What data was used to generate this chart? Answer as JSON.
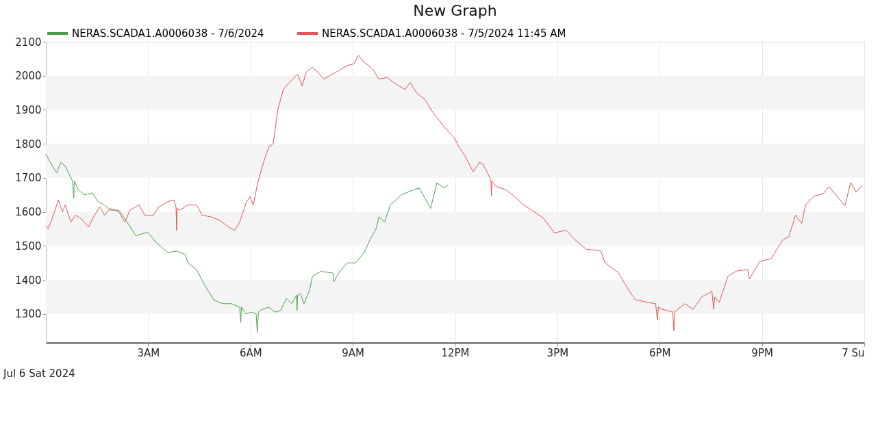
{
  "chart_data": {
    "type": "line",
    "title": "New Graph",
    "series": [
      {
        "name": "NERAS.SCADA1.A0006038 - 7/6/2024",
        "color": "#4c9e4c",
        "x": [
          "2024-07-06T00:00",
          "2024-07-06T00:06",
          "2024-07-06T00:19",
          "2024-07-06T00:26",
          "2024-07-06T00:34",
          "2024-07-06T00:47",
          "2024-07-06T00:49",
          "2024-07-06T00:50",
          "2024-07-06T00:57",
          "2024-07-06T01:07",
          "2024-07-06T01:22",
          "2024-07-06T01:32",
          "2024-07-06T01:43",
          "2024-07-06T01:53",
          "2024-07-06T02:08",
          "2024-07-06T02:23",
          "2024-07-06T02:38",
          "2024-07-06T02:59",
          "2024-07-06T03:14",
          "2024-07-06T03:35",
          "2024-07-06T03:50",
          "2024-07-06T04:05",
          "2024-07-06T04:10",
          "2024-07-06T04:25",
          "2024-07-06T04:41",
          "2024-07-06T04:56",
          "2024-07-06T05:11",
          "2024-07-06T05:26",
          "2024-07-06T05:41",
          "2024-07-06T05:43",
          "2024-07-06T05:44",
          "2024-07-06T05:52",
          "2024-07-06T06:02",
          "2024-07-06T06:10",
          "2024-07-06T06:12",
          "2024-07-06T06:14",
          "2024-07-06T06:17",
          "2024-07-06T06:32",
          "2024-07-06T06:43",
          "2024-07-06T06:53",
          "2024-07-06T07:03",
          "2024-07-06T07:13",
          "2024-07-06T07:21",
          "2024-07-06T07:22",
          "2024-07-06T07:23",
          "2024-07-06T07:28",
          "2024-07-06T07:34",
          "2024-07-06T07:44",
          "2024-07-06T07:49",
          "2024-07-06T08:04",
          "2024-07-06T08:25",
          "2024-07-06T08:27",
          "2024-07-06T08:35",
          "2024-07-06T08:50",
          "2024-07-06T09:05",
          "2024-07-06T09:20",
          "2024-07-06T09:31",
          "2024-07-06T09:41",
          "2024-07-06T09:46",
          "2024-07-06T09:56",
          "2024-07-06T10:06",
          "2024-07-06T10:26",
          "2024-07-06T10:47",
          "2024-07-06T10:57",
          "2024-07-06T11:07",
          "2024-07-06T11:17",
          "2024-07-06T11:28",
          "2024-07-06T11:41",
          "2024-07-06T11:48"
        ],
        "values": [
          1770,
          1750,
          1715,
          1745,
          1735,
          1690,
          1640,
          1690,
          1665,
          1650,
          1655,
          1630,
          1620,
          1605,
          1605,
          1570,
          1530,
          1540,
          1510,
          1480,
          1485,
          1475,
          1450,
          1430,
          1380,
          1340,
          1330,
          1330,
          1320,
          1275,
          1320,
          1300,
          1305,
          1300,
          1245,
          1305,
          1310,
          1320,
          1305,
          1310,
          1345,
          1330,
          1355,
          1310,
          1355,
          1360,
          1330,
          1370,
          1410,
          1425,
          1420,
          1395,
          1420,
          1450,
          1450,
          1480,
          1520,
          1550,
          1585,
          1570,
          1620,
          1650,
          1665,
          1670,
          1640,
          1610,
          1685,
          1670,
          1680
        ]
      },
      {
        "name": "NERAS.SCADA1.A0006038 - 7/5/2024  11:45 AM",
        "color": "#e05555",
        "x": [
          "2024-07-06T00:00",
          "2024-07-06T00:04",
          "2024-07-06T00:11",
          "2024-07-06T00:22",
          "2024-07-06T00:29",
          "2024-07-06T00:34",
          "2024-07-06T00:44",
          "2024-07-06T00:52",
          "2024-07-06T01:02",
          "2024-07-06T01:15",
          "2024-07-06T01:22",
          "2024-07-06T01:35",
          "2024-07-06T01:43",
          "2024-07-06T01:53",
          "2024-07-06T02:08",
          "2024-07-06T02:19",
          "2024-07-06T02:28",
          "2024-07-06T02:44",
          "2024-07-06T02:54",
          "2024-07-06T03:09",
          "2024-07-06T03:19",
          "2024-07-06T03:35",
          "2024-07-06T03:45",
          "2024-07-06T03:49",
          "2024-07-06T03:50",
          "2024-07-06T03:51",
          "2024-07-06T03:55",
          "2024-07-06T04:10",
          "2024-07-06T04:25",
          "2024-07-06T04:35",
          "2024-07-06T04:51",
          "2024-07-06T05:06",
          "2024-07-06T05:22",
          "2024-07-06T05:32",
          "2024-07-06T05:41",
          "2024-07-06T05:52",
          "2024-07-06T05:59",
          "2024-07-06T06:05",
          "2024-07-06T06:12",
          "2024-07-06T06:22",
          "2024-07-06T06:32",
          "2024-07-06T06:40",
          "2024-07-06T06:48",
          "2024-07-06T06:58",
          "2024-07-06T07:08",
          "2024-07-06T07:23",
          "2024-07-06T07:31",
          "2024-07-06T07:38",
          "2024-07-06T07:49",
          "2024-07-06T07:59",
          "2024-07-06T08:09",
          "2024-07-06T08:19",
          "2024-07-06T08:35",
          "2024-07-06T08:50",
          "2024-07-06T09:02",
          "2024-07-06T09:10",
          "2024-07-06T09:20",
          "2024-07-06T09:35",
          "2024-07-06T09:46",
          "2024-07-06T10:01",
          "2024-07-06T10:16",
          "2024-07-06T10:32",
          "2024-07-06T10:41",
          "2024-07-06T10:52",
          "2024-07-06T11:07",
          "2024-07-06T11:22",
          "2024-07-06T11:41",
          "2024-07-06T12:00",
          "2024-07-06T12:07",
          "2024-07-06T12:17",
          "2024-07-06T12:32",
          "2024-07-06T12:43",
          "2024-07-06T12:50",
          "2024-07-06T13:03",
          "2024-07-06T13:04",
          "2024-07-06T13:05",
          "2024-07-06T13:13",
          "2024-07-06T13:28",
          "2024-07-06T13:44",
          "2024-07-06T13:59",
          "2024-07-06T14:14",
          "2024-07-06T14:35",
          "2024-07-06T14:55",
          "2024-07-06T15:15",
          "2024-07-06T15:31",
          "2024-07-06T15:51",
          "2024-07-06T16:16",
          "2024-07-06T16:24",
          "2024-07-06T16:47",
          "2024-07-06T17:07",
          "2024-07-06T17:17",
          "2024-07-06T17:38",
          "2024-07-06T17:53",
          "2024-07-06T17:56",
          "2024-07-06T17:58",
          "2024-07-06T18:03",
          "2024-07-06T18:23",
          "2024-07-06T18:25",
          "2024-07-06T18:26",
          "2024-07-06T18:44",
          "2024-07-06T18:59",
          "2024-07-06T19:14",
          "2024-07-06T19:32",
          "2024-07-06T19:35",
          "2024-07-06T19:37",
          "2024-07-06T19:45",
          "2024-07-06T20:00",
          "2024-07-06T20:15",
          "2024-07-06T20:35",
          "2024-07-06T20:38",
          "2024-07-06T20:56",
          "2024-07-06T21:16",
          "2024-07-06T21:37",
          "2024-07-06T21:47",
          "2024-07-06T21:59",
          "2024-07-06T22:10",
          "2024-07-06T22:17",
          "2024-07-06T22:32",
          "2024-07-06T22:48",
          "2024-07-06T22:58",
          "2024-07-06T23:08",
          "2024-07-06T23:26",
          "2024-07-06T23:36",
          "2024-07-06T23:46",
          "2024-07-06T23:56"
        ],
        "values": [
          1560,
          1550,
          1580,
          1635,
          1600,
          1620,
          1570,
          1590,
          1580,
          1555,
          1580,
          1615,
          1590,
          1610,
          1600,
          1570,
          1605,
          1620,
          1590,
          1590,
          1615,
          1630,
          1635,
          1615,
          1545,
          1610,
          1605,
          1620,
          1620,
          1590,
          1585,
          1575,
          1555,
          1545,
          1570,
          1625,
          1645,
          1620,
          1680,
          1740,
          1790,
          1800,
          1900,
          1960,
          1980,
          2005,
          1970,
          2010,
          2025,
          2010,
          1990,
          2000,
          2015,
          2030,
          2035,
          2060,
          2040,
          2020,
          1990,
          1995,
          1975,
          1960,
          1980,
          1950,
          1930,
          1890,
          1850,
          1814,
          1790,
          1766,
          1718,
          1746,
          1738,
          1694,
          1646,
          1690,
          1674,
          1666,
          1646,
          1622,
          1606,
          1582,
          1538,
          1546,
          1518,
          1490,
          1486,
          1450,
          1422,
          1366,
          1342,
          1334,
          1330,
          1282,
          1320,
          1314,
          1306,
          1250,
          1305,
          1330,
          1314,
          1350,
          1366,
          1314,
          1350,
          1334,
          1410,
          1426,
          1430,
          1402,
          1454,
          1462,
          1518,
          1526,
          1590,
          1566,
          1622,
          1646,
          1654,
          1674,
          1654,
          1618,
          1686,
          1658,
          1678
        ]
      }
    ],
    "xlim": [
      "2024-07-06T00:00",
      "2024-07-07T00:00"
    ],
    "xticks": [
      {
        "value": "2024-07-06T03:00",
        "label": "3AM"
      },
      {
        "value": "2024-07-06T06:00",
        "label": "6AM"
      },
      {
        "value": "2024-07-06T09:00",
        "label": "9AM"
      },
      {
        "value": "2024-07-06T12:00",
        "label": "12PM"
      },
      {
        "value": "2024-07-06T15:00",
        "label": "3PM"
      },
      {
        "value": "2024-07-06T18:00",
        "label": "6PM"
      },
      {
        "value": "2024-07-06T21:00",
        "label": "9PM"
      },
      {
        "value": "2024-07-07T00:00",
        "label": "7 Su"
      }
    ],
    "ylim": [
      1215,
      2100
    ],
    "yticks": [
      1300,
      1400,
      1500,
      1600,
      1700,
      1800,
      1900,
      2000,
      2100
    ],
    "bands": [
      {
        "axis": "y",
        "from": 1300,
        "to": 1400,
        "color": "#f4f4f4"
      },
      {
        "axis": "y",
        "from": 1500,
        "to": 1600,
        "color": "#f4f4f4"
      },
      {
        "axis": "y",
        "from": 1700,
        "to": 1800,
        "color": "#f4f4f4"
      },
      {
        "axis": "y",
        "from": 1900,
        "to": 2000,
        "color": "#f4f4f4"
      }
    ],
    "annotations": [
      "Jul 6 Sat 2024"
    ],
    "grid": "x",
    "legend": "top",
    "marker": "none",
    "line_style": "solid"
  }
}
